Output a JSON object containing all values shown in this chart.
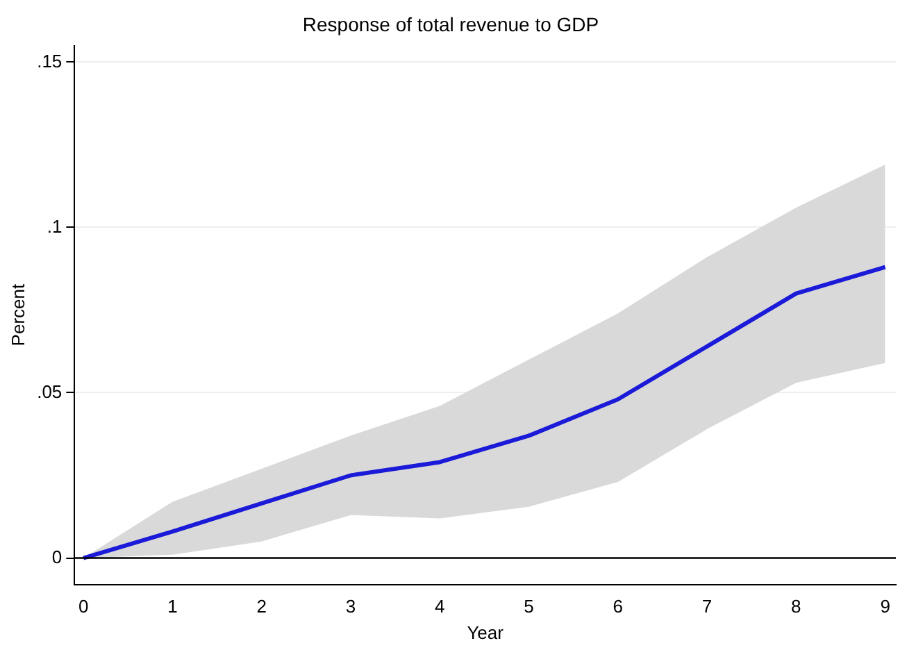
{
  "chart_data": {
    "type": "line",
    "title": "Response of total revenue to GDP",
    "xlabel": "Year",
    "ylabel": "Percent",
    "x": [
      0,
      1,
      2,
      3,
      4,
      5,
      6,
      7,
      8,
      9
    ],
    "series": [
      {
        "color": "#1a1ad8",
        "values": [
          0,
          0.008,
          0.0165,
          0.025,
          0.029,
          0.037,
          0.048,
          0.064,
          0.08,
          0.088
        ],
        "lower": [
          0,
          0.001,
          0.005,
          0.013,
          0.012,
          0.0155,
          0.023,
          0.039,
          0.053,
          0.059
        ],
        "upper": [
          0,
          0.017,
          0.027,
          0.037,
          0.046,
          0.06,
          0.074,
          0.091,
          0.106,
          0.119
        ]
      }
    ],
    "xlim": [
      -0.1,
      9.12
    ],
    "xticks": [
      0,
      1,
      2,
      3,
      4,
      5,
      6,
      7,
      8,
      9
    ],
    "ylim": [
      -0.008,
      0.155
    ],
    "yticks": [
      {
        "value": 0,
        "label": "0"
      },
      {
        "value": 0.05,
        "label": ".05"
      },
      {
        "value": 0.1,
        "label": ".1"
      },
      {
        "value": 0.15,
        "label": ".15"
      }
    ],
    "ref_lines": [
      {
        "axis": "y",
        "value": 0,
        "color": "#000000"
      }
    ],
    "grid": "y",
    "legend": false,
    "marker": "none",
    "line_style": "solid"
  }
}
